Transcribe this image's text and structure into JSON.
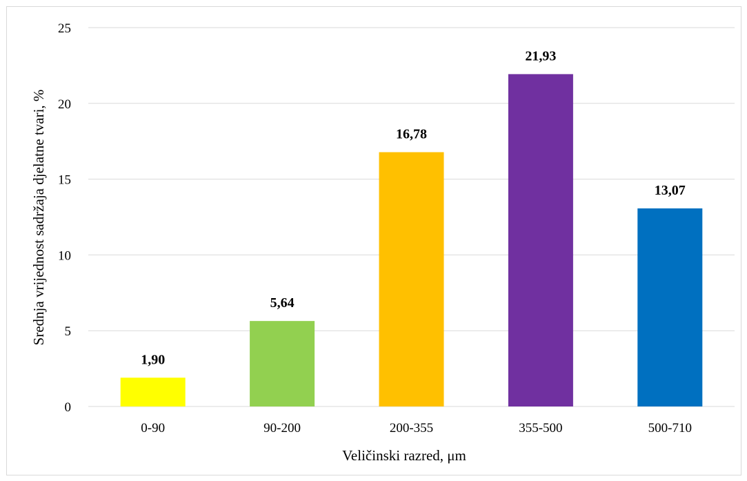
{
  "chart_data": {
    "type": "bar",
    "categories": [
      "0-90",
      "90-200",
      "200-355",
      "355-500",
      "500-710"
    ],
    "values": [
      1.9,
      5.64,
      16.78,
      21.93,
      13.07
    ],
    "value_labels": [
      "1,90",
      "5,64",
      "16,78",
      "21,93",
      "13,07"
    ],
    "bar_colors": [
      "#ffff00",
      "#92d050",
      "#ffc000",
      "#7030a0",
      "#0070c0"
    ],
    "xlabel": "Veličinski razred, μm",
    "ylabel": "Srednja vrijednost sadržaja djelatne tvari, %",
    "ylim": [
      0,
      25
    ],
    "yticks": [
      0,
      5,
      10,
      15,
      20,
      25
    ],
    "grid": true,
    "legend": "none",
    "gridline_color": "#d9d9d9"
  }
}
